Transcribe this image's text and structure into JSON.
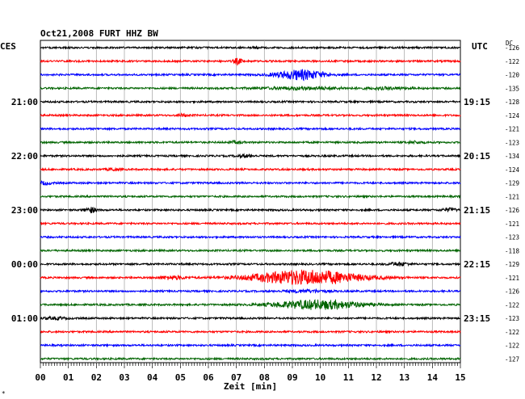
{
  "chart_data": {
    "type": "line",
    "title": "Oct21,2008   FURT HHZ BW",
    "xlabel": "Zeit [min]",
    "xlim": [
      0,
      15
    ],
    "x_ticks": [
      "00",
      "01",
      "02",
      "03",
      "04",
      "05",
      "06",
      "07",
      "08",
      "09",
      "10",
      "11",
      "12",
      "13",
      "14",
      "15"
    ],
    "left_axis_label": "CES",
    "right_axis_label": "UTC",
    "dc_label": "DC",
    "left_time_labels": [
      {
        "row": 4,
        "label": "21:00"
      },
      {
        "row": 8,
        "label": "22:00"
      },
      {
        "row": 12,
        "label": "23:00"
      },
      {
        "row": 16,
        "label": "00:00"
      },
      {
        "row": 20,
        "label": "01:00"
      }
    ],
    "right_time_labels": [
      {
        "row": 4,
        "label": "19:15"
      },
      {
        "row": 8,
        "label": "20:15"
      },
      {
        "row": 12,
        "label": "21:15"
      },
      {
        "row": 16,
        "label": "22:15"
      },
      {
        "row": 20,
        "label": "23:15"
      }
    ],
    "dc_offsets": [
      "-126",
      "-122",
      "-120",
      "-135",
      "-128",
      "-124",
      "-121",
      "-123",
      "-134",
      "-124",
      "-129",
      "-121",
      "-126",
      "-121",
      "-123",
      "-118",
      "-129",
      "-121",
      "-126",
      "-122",
      "-123",
      "-122",
      "-122",
      "-127"
    ],
    "row_colors": [
      "#000000",
      "#ff0000",
      "#0000ff",
      "#006400"
    ],
    "events": [
      {
        "row": 0,
        "t": 7.7,
        "amp": 1.6,
        "width": 0.12
      },
      {
        "row": 1,
        "t": 7.05,
        "amp": 3.5,
        "width": 0.15
      },
      {
        "row": 2,
        "t": 9.3,
        "amp": 6.0,
        "width": 0.85
      },
      {
        "row": 3,
        "t": 9.4,
        "amp": 1.3,
        "width": 1.6
      },
      {
        "row": 3,
        "t": 12.5,
        "amp": 1.1,
        "width": 0.8
      },
      {
        "row": 5,
        "t": 5.1,
        "amp": 1.3,
        "width": 0.2
      },
      {
        "row": 7,
        "t": 7.0,
        "amp": 1.3,
        "width": 0.25
      },
      {
        "row": 7,
        "t": 13.4,
        "amp": 1.2,
        "width": 0.3
      },
      {
        "row": 8,
        "t": 7.3,
        "amp": 1.6,
        "width": 0.3
      },
      {
        "row": 9,
        "t": 2.6,
        "amp": 1.5,
        "width": 0.2
      },
      {
        "row": 10,
        "t": 0.15,
        "amp": 1.6,
        "width": 0.25
      },
      {
        "row": 12,
        "t": 1.8,
        "amp": 3.2,
        "width": 0.2
      },
      {
        "row": 12,
        "t": 14.6,
        "amp": 1.8,
        "width": 0.25
      },
      {
        "row": 16,
        "t": 12.8,
        "amp": 2.0,
        "width": 0.35
      },
      {
        "row": 17,
        "t": 9.5,
        "amp": 9.0,
        "width": 1.9
      },
      {
        "row": 17,
        "t": 4.7,
        "amp": 2.0,
        "width": 0.5
      },
      {
        "row": 18,
        "t": 9.5,
        "amp": 1.4,
        "width": 0.8
      },
      {
        "row": 19,
        "t": 9.9,
        "amp": 5.5,
        "width": 1.5
      },
      {
        "row": 20,
        "t": 0.5,
        "amp": 1.3,
        "width": 0.4
      }
    ]
  }
}
